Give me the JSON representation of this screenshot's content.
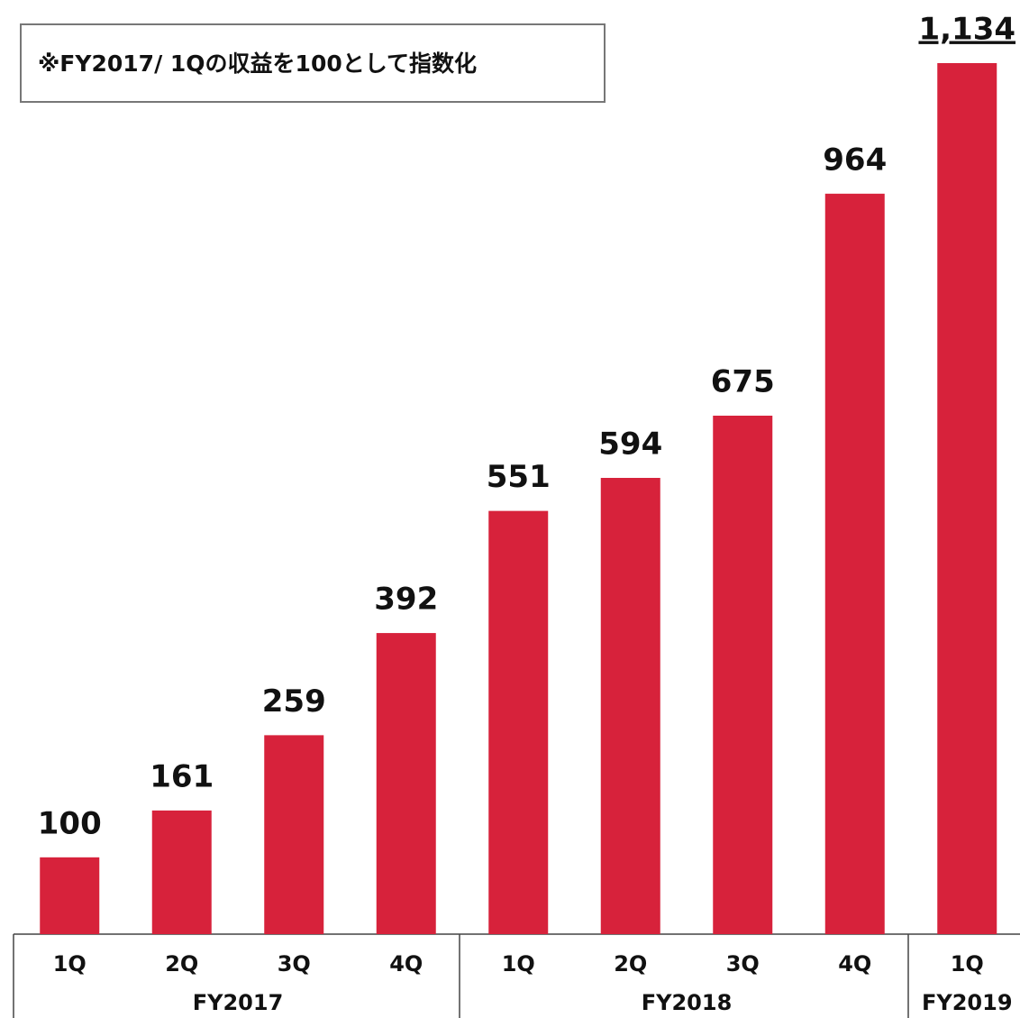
{
  "chart_data": {
    "type": "bar",
    "annotation": "※FY2017/ 1Qの収益を100として指数化",
    "groups": [
      {
        "name": "FY2017",
        "categories": [
          "1Q",
          "2Q",
          "3Q",
          "4Q"
        ]
      },
      {
        "name": "FY2018",
        "categories": [
          "1Q",
          "2Q",
          "3Q",
          "4Q"
        ]
      },
      {
        "name": "FY2019",
        "categories": [
          "1Q"
        ]
      }
    ],
    "values": [
      100,
      161,
      259,
      392,
      551,
      594,
      675,
      964,
      1134
    ],
    "value_labels": [
      "100",
      "161",
      "259",
      "392",
      "551",
      "594",
      "675",
      "964",
      "1,134"
    ],
    "color": "#d7223b"
  }
}
